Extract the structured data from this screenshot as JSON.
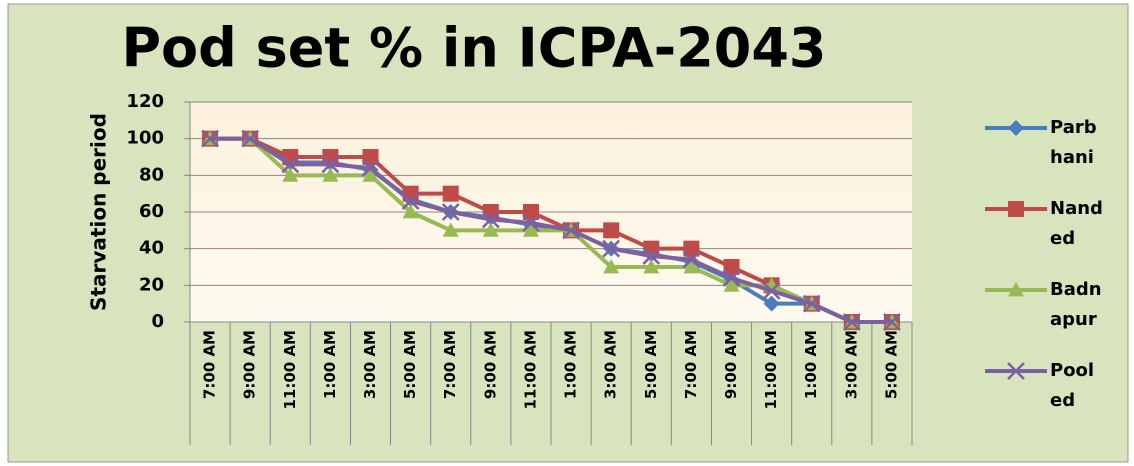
{
  "chart_data": {
    "type": "line",
    "title": "Pod set % in ICPA-2043",
    "y_label": "Starvation period",
    "categories": [
      "7:00 AM",
      "9:00 AM",
      "11:00 AM",
      "1:00 AM",
      "3:00 AM",
      "5:00 AM",
      "7:00 AM",
      "9:00 AM",
      "11:00 AM",
      "1:00 AM",
      "3:00 AM",
      "5:00 AM",
      "7:00 AM",
      "9:00 AM",
      "11:00 AM",
      "1:00 AM",
      "3:00 AM",
      "5:00 AM"
    ],
    "series": [
      {
        "name": "Parbhani",
        "color": "#4a7ebb",
        "marker": "diamond",
        "values": [
          100,
          100,
          87,
          87,
          83,
          67,
          60,
          57,
          53,
          50,
          40,
          37,
          33,
          23,
          10,
          10,
          0,
          0
        ]
      },
      {
        "name": "Nanded",
        "color": "#be4b48",
        "marker": "square",
        "values": [
          100,
          100,
          90,
          90,
          90,
          70,
          70,
          60,
          60,
          50,
          50,
          40,
          40,
          30,
          20,
          10,
          0,
          0
        ]
      },
      {
        "name": "Badnapur",
        "color": "#98b954",
        "marker": "triangle",
        "values": [
          100,
          100,
          80,
          80,
          80,
          60,
          50,
          50,
          50,
          50,
          30,
          30,
          30,
          20,
          20,
          10,
          0,
          0
        ]
      },
      {
        "name": "Pooled",
        "color": "#7d60a0",
        "marker": "x",
        "values": [
          100,
          100,
          86,
          86,
          84,
          66,
          60,
          56,
          54,
          50,
          40,
          36,
          34,
          24,
          17,
          10,
          0,
          0
        ]
      }
    ],
    "ylim": [
      0,
      120
    ],
    "yticks": [
      0,
      20,
      40,
      60,
      80,
      100,
      120
    ],
    "grid": true,
    "legend": "right"
  }
}
